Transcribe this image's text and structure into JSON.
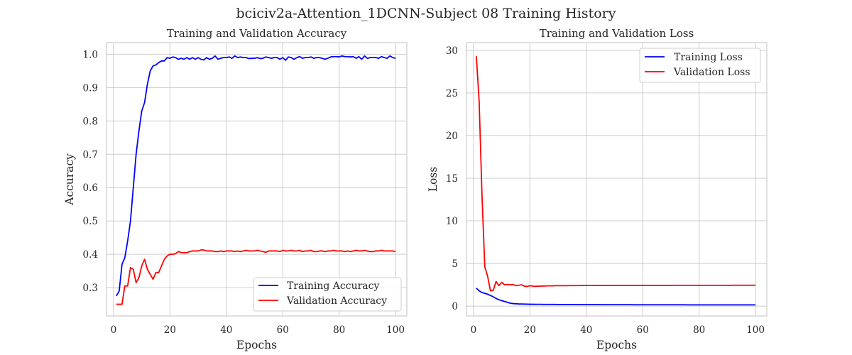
{
  "figure": {
    "title": "bciciv2a-Attention_1DCNN-Subject 08 Training History"
  },
  "chart_data": [
    {
      "type": "line",
      "title": "Training and Validation Accuracy",
      "xlabel": "Epochs",
      "ylabel": "Accuracy",
      "xlim": [
        -2.5,
        104
      ],
      "ylim": [
        0.215,
        1.035
      ],
      "xticks": [
        0,
        20,
        40,
        60,
        80,
        100
      ],
      "yticks": [
        0.3,
        0.4,
        0.5,
        0.6,
        0.7,
        0.8,
        0.9,
        1.0
      ],
      "ytick_labels": [
        "0.3",
        "0.4",
        "0.5",
        "0.6",
        "0.7",
        "0.8",
        "0.9",
        "1.0"
      ],
      "grid": true,
      "legend_position": "lower-right",
      "series": [
        {
          "name": "Training Accuracy",
          "color": "#0000ff",
          "x": [
            1,
            2,
            3,
            4,
            5,
            6,
            7,
            8,
            9,
            10,
            11,
            12,
            13,
            14,
            15,
            16,
            17,
            18,
            19,
            20,
            21,
            22,
            23,
            24,
            25,
            26,
            27,
            28,
            29,
            30,
            31,
            32,
            33,
            34,
            35,
            36,
            37,
            38,
            39,
            40,
            41,
            42,
            43,
            44,
            45,
            46,
            47,
            48,
            49,
            50,
            51,
            52,
            53,
            54,
            55,
            56,
            57,
            58,
            59,
            60,
            61,
            62,
            63,
            64,
            65,
            66,
            67,
            68,
            69,
            70,
            71,
            72,
            73,
            74,
            75,
            76,
            77,
            78,
            79,
            80,
            81,
            82,
            83,
            84,
            85,
            86,
            87,
            88,
            89,
            90,
            91,
            92,
            93,
            94,
            95,
            96,
            97,
            98,
            99,
            100
          ],
          "y": [
            0.275,
            0.29,
            0.37,
            0.39,
            0.44,
            0.5,
            0.6,
            0.7,
            0.77,
            0.83,
            0.855,
            0.91,
            0.95,
            0.965,
            0.968,
            0.975,
            0.98,
            0.98,
            0.99,
            0.988,
            0.992,
            0.99,
            0.985,
            0.988,
            0.985,
            0.99,
            0.985,
            0.99,
            0.985,
            0.99,
            0.985,
            0.983,
            0.99,
            0.985,
            0.988,
            0.995,
            0.985,
            0.988,
            0.99,
            0.99,
            0.992,
            0.988,
            0.995,
            0.99,
            0.992,
            0.99,
            0.99,
            0.987,
            0.988,
            0.988,
            0.99,
            0.987,
            0.988,
            0.992,
            0.99,
            0.988,
            0.99,
            0.99,
            0.985,
            0.99,
            0.982,
            0.992,
            0.99,
            0.985,
            0.99,
            0.993,
            0.988,
            0.99,
            0.99,
            0.992,
            0.988,
            0.99,
            0.99,
            0.988,
            0.985,
            0.988,
            0.992,
            0.993,
            0.993,
            0.992,
            0.995,
            0.993,
            0.993,
            0.992,
            0.993,
            0.988,
            0.993,
            0.985,
            0.995,
            0.988,
            0.99,
            0.99,
            0.99,
            0.988,
            0.993,
            0.99,
            0.988,
            0.995,
            0.99,
            0.988
          ]
        },
        {
          "name": "Validation Accuracy",
          "color": "#ff0000",
          "x": [
            1,
            2,
            3,
            4,
            5,
            6,
            7,
            8,
            9,
            10,
            11,
            12,
            13,
            14,
            15,
            16,
            17,
            18,
            19,
            20,
            21,
            22,
            23,
            24,
            25,
            26,
            27,
            28,
            29,
            30,
            31,
            32,
            33,
            34,
            35,
            36,
            37,
            38,
            39,
            40,
            41,
            42,
            43,
            44,
            45,
            46,
            47,
            48,
            49,
            50,
            51,
            52,
            53,
            54,
            55,
            56,
            57,
            58,
            59,
            60,
            61,
            62,
            63,
            64,
            65,
            66,
            67,
            68,
            69,
            70,
            71,
            72,
            73,
            74,
            75,
            76,
            77,
            78,
            79,
            80,
            81,
            82,
            83,
            84,
            85,
            86,
            87,
            88,
            89,
            90,
            91,
            92,
            93,
            94,
            95,
            96,
            97,
            98,
            99,
            100
          ],
          "y": [
            0.25,
            0.25,
            0.25,
            0.305,
            0.305,
            0.36,
            0.355,
            0.315,
            0.33,
            0.365,
            0.385,
            0.355,
            0.34,
            0.325,
            0.345,
            0.345,
            0.365,
            0.385,
            0.395,
            0.4,
            0.4,
            0.402,
            0.408,
            0.405,
            0.405,
            0.405,
            0.408,
            0.41,
            0.41,
            0.41,
            0.413,
            0.413,
            0.41,
            0.41,
            0.41,
            0.408,
            0.408,
            0.41,
            0.408,
            0.41,
            0.41,
            0.41,
            0.408,
            0.41,
            0.408,
            0.41,
            0.412,
            0.41,
            0.41,
            0.41,
            0.412,
            0.41,
            0.408,
            0.406,
            0.41,
            0.41,
            0.41,
            0.41,
            0.408,
            0.412,
            0.41,
            0.41,
            0.412,
            0.41,
            0.41,
            0.412,
            0.408,
            0.41,
            0.41,
            0.412,
            0.408,
            0.408,
            0.41,
            0.41,
            0.408,
            0.41,
            0.41,
            0.412,
            0.41,
            0.41,
            0.41,
            0.408,
            0.41,
            0.408,
            0.41,
            0.412,
            0.41,
            0.41,
            0.412,
            0.41,
            0.408,
            0.408,
            0.41,
            0.41,
            0.412,
            0.41,
            0.41,
            0.41,
            0.41,
            0.408
          ]
        }
      ]
    },
    {
      "type": "line",
      "title": "Training and Validation Loss",
      "xlabel": "Epochs",
      "ylabel": "Loss",
      "xlim": [
        -2.5,
        104
      ],
      "ylim": [
        -1.15,
        30.9
      ],
      "xticks": [
        0,
        20,
        40,
        60,
        80,
        100
      ],
      "yticks": [
        0,
        5,
        10,
        15,
        20,
        25,
        30
      ],
      "ytick_labels": [
        "0",
        "5",
        "10",
        "15",
        "20",
        "25",
        "30"
      ],
      "grid": true,
      "legend_position": "upper-right",
      "series": [
        {
          "name": "Training Loss",
          "color": "#0000ff",
          "x": [
            1,
            2,
            3,
            4,
            5,
            6,
            7,
            8,
            9,
            10,
            11,
            12,
            13,
            14,
            15,
            16,
            17,
            18,
            19,
            20,
            21,
            22,
            23,
            24,
            25,
            26,
            27,
            28,
            29,
            30,
            31,
            32,
            33,
            34,
            35,
            36,
            37,
            38,
            39,
            40,
            41,
            42,
            43,
            44,
            45,
            46,
            47,
            48,
            49,
            50,
            51,
            52,
            53,
            54,
            55,
            56,
            57,
            58,
            59,
            60,
            61,
            62,
            63,
            64,
            65,
            66,
            67,
            68,
            69,
            70,
            71,
            72,
            73,
            74,
            75,
            76,
            77,
            78,
            79,
            80,
            81,
            82,
            83,
            84,
            85,
            86,
            87,
            88,
            89,
            90,
            91,
            92,
            93,
            94,
            95,
            96,
            97,
            98,
            99,
            100
          ],
          "y": [
            2.1,
            1.8,
            1.6,
            1.5,
            1.4,
            1.25,
            1.1,
            0.9,
            0.75,
            0.65,
            0.55,
            0.45,
            0.35,
            0.3,
            0.28,
            0.26,
            0.25,
            0.24,
            0.23,
            0.22,
            0.22,
            0.21,
            0.21,
            0.21,
            0.2,
            0.2,
            0.2,
            0.2,
            0.2,
            0.19,
            0.19,
            0.19,
            0.19,
            0.19,
            0.19,
            0.19,
            0.18,
            0.18,
            0.18,
            0.18,
            0.18,
            0.18,
            0.18,
            0.18,
            0.17,
            0.17,
            0.17,
            0.17,
            0.17,
            0.17,
            0.17,
            0.17,
            0.17,
            0.17,
            0.17,
            0.17,
            0.16,
            0.16,
            0.16,
            0.16,
            0.16,
            0.16,
            0.16,
            0.16,
            0.16,
            0.16,
            0.16,
            0.16,
            0.16,
            0.16,
            0.16,
            0.16,
            0.16,
            0.16,
            0.16,
            0.15,
            0.15,
            0.15,
            0.15,
            0.15,
            0.15,
            0.15,
            0.15,
            0.15,
            0.15,
            0.15,
            0.15,
            0.15,
            0.15,
            0.15,
            0.15,
            0.15,
            0.15,
            0.15,
            0.15,
            0.15,
            0.15,
            0.15,
            0.15,
            0.15
          ]
        },
        {
          "name": "Validation Loss",
          "color": "#ff0000",
          "x": [
            1,
            2,
            3,
            4,
            5,
            6,
            7,
            8,
            9,
            10,
            11,
            12,
            13,
            14,
            15,
            16,
            17,
            18,
            19,
            20,
            21,
            22,
            23,
            24,
            25,
            26,
            27,
            28,
            29,
            30,
            31,
            32,
            33,
            34,
            35,
            36,
            37,
            38,
            39,
            40,
            41,
            42,
            43,
            44,
            45,
            46,
            47,
            48,
            49,
            50,
            51,
            52,
            53,
            54,
            55,
            56,
            57,
            58,
            59,
            60,
            61,
            62,
            63,
            64,
            65,
            66,
            67,
            68,
            69,
            70,
            71,
            72,
            73,
            74,
            75,
            76,
            77,
            78,
            79,
            80,
            81,
            82,
            83,
            84,
            85,
            86,
            87,
            88,
            89,
            90,
            91,
            92,
            93,
            94,
            95,
            96,
            97,
            98,
            99,
            100
          ],
          "y": [
            29.3,
            24.0,
            13.0,
            4.6,
            3.5,
            1.8,
            1.85,
            2.9,
            2.4,
            2.8,
            2.5,
            2.55,
            2.5,
            2.55,
            2.4,
            2.45,
            2.5,
            2.35,
            2.3,
            2.4,
            2.35,
            2.32,
            2.34,
            2.36,
            2.35,
            2.38,
            2.38,
            2.38,
            2.4,
            2.4,
            2.4,
            2.4,
            2.4,
            2.41,
            2.41,
            2.41,
            2.41,
            2.42,
            2.42,
            2.42,
            2.42,
            2.42,
            2.42,
            2.42,
            2.42,
            2.42,
            2.42,
            2.42,
            2.43,
            2.43,
            2.43,
            2.43,
            2.43,
            2.43,
            2.43,
            2.43,
            2.43,
            2.43,
            2.43,
            2.43,
            2.43,
            2.43,
            2.43,
            2.43,
            2.43,
            2.43,
            2.43,
            2.43,
            2.43,
            2.43,
            2.44,
            2.44,
            2.44,
            2.44,
            2.44,
            2.44,
            2.44,
            2.44,
            2.44,
            2.44,
            2.44,
            2.44,
            2.44,
            2.44,
            2.44,
            2.44,
            2.44,
            2.44,
            2.44,
            2.44,
            2.44,
            2.45,
            2.45,
            2.45,
            2.45,
            2.45,
            2.45,
            2.45,
            2.45,
            2.45
          ]
        }
      ]
    }
  ]
}
